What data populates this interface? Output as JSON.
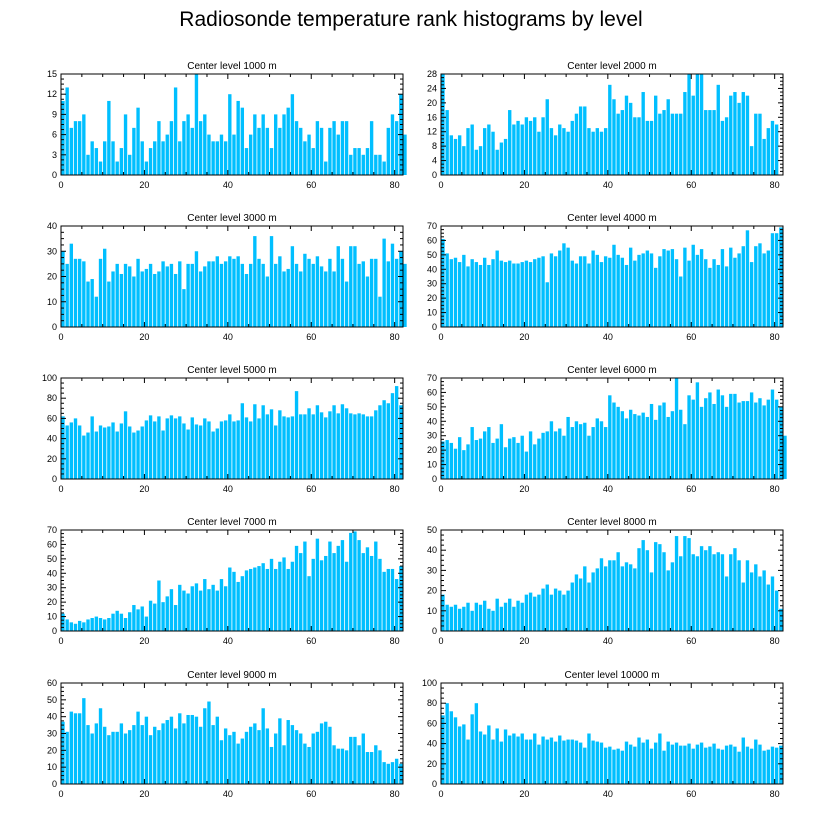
{
  "title": "Radiosonde temperature rank histograms by level",
  "colors": {
    "bar": "#00bfff",
    "axis": "#000000",
    "background": "#ffffff"
  },
  "chart_data": [
    {
      "type": "bar",
      "title": "Center level 1000 m",
      "xlim": [
        0,
        82
      ],
      "ylim": [
        0,
        15
      ],
      "xticks": [
        0,
        20,
        40,
        60,
        80
      ],
      "yticks": [
        0,
        3,
        6,
        9,
        12,
        15
      ],
      "values": [
        11,
        13,
        7,
        8,
        8,
        9,
        3,
        5,
        4,
        2,
        5,
        11,
        5,
        2,
        4,
        9,
        3,
        7,
        10,
        5,
        2,
        4,
        5,
        8,
        5,
        6,
        8,
        13,
        5,
        8,
        9,
        7,
        15,
        8,
        9,
        6,
        5,
        5,
        6,
        5,
        12,
        6,
        11,
        10,
        4,
        6,
        9,
        7,
        9,
        7,
        4,
        9,
        7,
        9,
        10,
        12,
        8,
        7,
        5,
        6,
        4,
        8,
        7,
        2,
        7,
        8,
        6,
        8,
        8,
        3,
        4,
        4,
        3,
        4,
        8,
        3,
        3,
        2,
        7,
        9,
        8,
        12,
        6
      ]
    },
    {
      "type": "bar",
      "title": "Center level 2000 m",
      "xlim": [
        0,
        82
      ],
      "ylim": [
        0,
        28
      ],
      "xticks": [
        0,
        20,
        40,
        60,
        80
      ],
      "yticks": [
        0,
        4,
        8,
        12,
        16,
        20,
        24,
        28
      ],
      "values": [
        28,
        18,
        11,
        10,
        11,
        8,
        13,
        14,
        7,
        8,
        13,
        14,
        12,
        7,
        9,
        10,
        18,
        14,
        15,
        14,
        16,
        15,
        16,
        12,
        16,
        21,
        13,
        11,
        14,
        13,
        12,
        15,
        17,
        19,
        19,
        13,
        12,
        13,
        12,
        13,
        25,
        21,
        17,
        18,
        22,
        20,
        16,
        16,
        23,
        15,
        15,
        22,
        17,
        18,
        21,
        17,
        17,
        17,
        23,
        28,
        22,
        28,
        28,
        18,
        18,
        18,
        25,
        15,
        16,
        22,
        23,
        20,
        23,
        22,
        8,
        17,
        17,
        10,
        13,
        15,
        14
      ]
    },
    {
      "type": "bar",
      "title": "Center level 3000 m",
      "xlim": [
        0,
        82
      ],
      "ylim": [
        0,
        40
      ],
      "xticks": [
        0,
        20,
        40,
        60,
        80
      ],
      "yticks": [
        0,
        10,
        20,
        30,
        40
      ],
      "values": [
        30,
        25,
        33,
        27,
        27,
        26,
        18,
        19,
        12,
        27,
        31,
        18,
        22,
        25,
        21,
        25,
        24,
        20,
        27,
        22,
        23,
        25,
        21,
        22,
        26,
        24,
        25,
        21,
        26,
        15,
        25,
        25,
        30,
        22,
        24,
        26,
        26,
        28,
        25,
        26,
        28,
        27,
        28,
        25,
        21,
        25,
        36,
        27,
        25,
        20,
        36,
        25,
        28,
        22,
        23,
        32,
        25,
        22,
        29,
        27,
        25,
        28,
        24,
        22,
        27,
        22,
        32,
        27,
        18,
        32,
        32,
        25,
        26,
        20,
        27,
        27,
        12,
        35,
        26,
        33,
        27,
        30,
        25
      ]
    },
    {
      "type": "bar",
      "title": "Center level 4000 m",
      "xlim": [
        0,
        82
      ],
      "ylim": [
        0,
        70
      ],
      "xticks": [
        0,
        20,
        40,
        60,
        80
      ],
      "yticks": [
        0,
        10,
        20,
        30,
        40,
        50,
        60,
        70
      ],
      "values": [
        61,
        51,
        47,
        48,
        45,
        50,
        42,
        47,
        45,
        43,
        48,
        43,
        47,
        53,
        46,
        45,
        46,
        44,
        44,
        45,
        46,
        45,
        47,
        48,
        49,
        31,
        51,
        49,
        53,
        58,
        55,
        46,
        44,
        49,
        49,
        44,
        53,
        50,
        45,
        49,
        48,
        57,
        50,
        48,
        43,
        55,
        46,
        50,
        51,
        53,
        51,
        41,
        49,
        54,
        53,
        54,
        47,
        35,
        55,
        46,
        57,
        50,
        54,
        47,
        41,
        47,
        43,
        54,
        42,
        55,
        48,
        51,
        56,
        67,
        45,
        56,
        58,
        51,
        53,
        65,
        65,
        69
      ]
    },
    {
      "type": "bar",
      "title": "Center level 5000 m",
      "xlim": [
        0,
        82
      ],
      "ylim": [
        0,
        100
      ],
      "xticks": [
        0,
        20,
        40,
        60,
        80
      ],
      "yticks": [
        0,
        20,
        40,
        60,
        80,
        100
      ],
      "values": [
        62,
        53,
        56,
        60,
        53,
        43,
        46,
        62,
        47,
        53,
        51,
        52,
        56,
        47,
        55,
        67,
        52,
        46,
        48,
        52,
        58,
        63,
        57,
        62,
        48,
        60,
        63,
        60,
        62,
        55,
        49,
        61,
        54,
        53,
        60,
        57,
        47,
        50,
        57,
        58,
        64,
        57,
        58,
        75,
        61,
        57,
        74,
        60,
        73,
        64,
        69,
        53,
        68,
        62,
        61,
        62,
        87,
        64,
        64,
        70,
        64,
        73,
        66,
        61,
        67,
        73,
        65,
        74,
        70,
        65,
        64,
        65,
        64,
        62,
        62,
        68,
        73,
        78,
        75,
        85,
        92,
        73
      ]
    },
    {
      "type": "bar",
      "title": "Center level 6000 m",
      "xlim": [
        0,
        82
      ],
      "ylim": [
        0,
        70
      ],
      "xticks": [
        0,
        20,
        40,
        60,
        80
      ],
      "yticks": [
        0,
        10,
        20,
        30,
        40,
        50,
        60,
        70
      ],
      "values": [
        26,
        27,
        25,
        21,
        29,
        20,
        24,
        36,
        27,
        28,
        33,
        36,
        25,
        28,
        38,
        22,
        28,
        29,
        25,
        30,
        19,
        33,
        24,
        28,
        32,
        33,
        40,
        33,
        35,
        30,
        43,
        36,
        40,
        38,
        39,
        30,
        36,
        42,
        40,
        36,
        58,
        53,
        50,
        47,
        42,
        48,
        45,
        44,
        46,
        43,
        52,
        41,
        51,
        53,
        43,
        47,
        70,
        48,
        38,
        58,
        55,
        67,
        50,
        56,
        60,
        52,
        62,
        58,
        50,
        59,
        59,
        53,
        54,
        54,
        60,
        53,
        56,
        51,
        55,
        62,
        55,
        50,
        30
      ]
    },
    {
      "type": "bar",
      "title": "Center level 7000 m",
      "xlim": [
        0,
        82
      ],
      "ylim": [
        0,
        70
      ],
      "xticks": [
        0,
        20,
        40,
        60,
        80
      ],
      "yticks": [
        0,
        10,
        20,
        30,
        40,
        50,
        60,
        70
      ],
      "values": [
        12,
        8,
        6,
        5,
        7,
        6,
        8,
        9,
        10,
        9,
        8,
        9,
        12,
        14,
        12,
        9,
        13,
        18,
        15,
        17,
        10,
        21,
        19,
        35,
        20,
        24,
        29,
        18,
        32,
        28,
        26,
        31,
        33,
        28,
        36,
        29,
        32,
        28,
        36,
        31,
        44,
        41,
        34,
        38,
        42,
        43,
        44,
        45,
        47,
        43,
        50,
        43,
        48,
        51,
        43,
        48,
        59,
        54,
        62,
        38,
        50,
        64,
        49,
        52,
        62,
        54,
        59,
        63,
        48,
        68,
        69,
        63,
        54,
        58,
        52,
        62,
        50,
        41,
        43,
        43,
        36,
        45
      ]
    },
    {
      "type": "bar",
      "title": "Center level 8000 m",
      "xlim": [
        0,
        82
      ],
      "ylim": [
        0,
        50
      ],
      "xticks": [
        0,
        20,
        40,
        60,
        80
      ],
      "yticks": [
        0,
        10,
        20,
        30,
        40,
        50
      ],
      "values": [
        18,
        13,
        12,
        13,
        11,
        12,
        14,
        10,
        14,
        13,
        15,
        11,
        10,
        16,
        12,
        14,
        16,
        12,
        15,
        14,
        18,
        19,
        17,
        18,
        21,
        23,
        18,
        21,
        20,
        18,
        20,
        24,
        28,
        26,
        32,
        24,
        29,
        31,
        36,
        32,
        35,
        35,
        39,
        32,
        34,
        33,
        31,
        41,
        45,
        40,
        29,
        44,
        43,
        39,
        30,
        34,
        47,
        37,
        47,
        46,
        38,
        37,
        42,
        40,
        42,
        38,
        39,
        38,
        27,
        38,
        41,
        35,
        24,
        35,
        29,
        33,
        27,
        30,
        23,
        27,
        20,
        11
      ]
    },
    {
      "type": "bar",
      "title": "Center level 9000 m",
      "xlim": [
        0,
        82
      ],
      "ylim": [
        0,
        60
      ],
      "xticks": [
        0,
        20,
        40,
        60,
        80
      ],
      "yticks": [
        0,
        10,
        20,
        30,
        40,
        50,
        60
      ],
      "values": [
        37,
        31,
        43,
        42,
        42,
        51,
        35,
        30,
        36,
        45,
        34,
        29,
        31,
        31,
        36,
        30,
        32,
        35,
        43,
        35,
        40,
        29,
        34,
        32,
        36,
        38,
        40,
        33,
        42,
        36,
        41,
        41,
        40,
        34,
        45,
        49,
        35,
        40,
        26,
        33,
        29,
        31,
        24,
        27,
        31,
        34,
        36,
        32,
        45,
        33,
        22,
        30,
        39,
        23,
        38,
        35,
        32,
        30,
        24,
        22,
        30,
        31,
        36,
        37,
        34,
        23,
        21,
        21,
        20,
        28,
        28,
        23,
        30,
        19,
        19,
        23,
        20,
        13,
        12,
        13,
        15,
        12
      ]
    },
    {
      "type": "bar",
      "title": "Center level 10000 m",
      "xlim": [
        0,
        82
      ],
      "ylim": [
        0,
        100
      ],
      "xticks": [
        0,
        20,
        40,
        60,
        80
      ],
      "yticks": [
        0,
        20,
        40,
        60,
        80,
        100
      ],
      "values": [
        68,
        80,
        72,
        66,
        57,
        59,
        44,
        69,
        80,
        52,
        49,
        58,
        44,
        55,
        42,
        54,
        48,
        50,
        47,
        50,
        44,
        44,
        50,
        39,
        47,
        44,
        46,
        42,
        48,
        43,
        44,
        44,
        43,
        41,
        36,
        50,
        43,
        42,
        41,
        36,
        37,
        34,
        35,
        33,
        42,
        39,
        37,
        46,
        41,
        44,
        35,
        41,
        50,
        33,
        42,
        39,
        41,
        38,
        38,
        40,
        35,
        39,
        41,
        36,
        37,
        40,
        35,
        34,
        38,
        39,
        37,
        32,
        46,
        37,
        35,
        44,
        39,
        33,
        34,
        37,
        36,
        38
      ]
    }
  ]
}
